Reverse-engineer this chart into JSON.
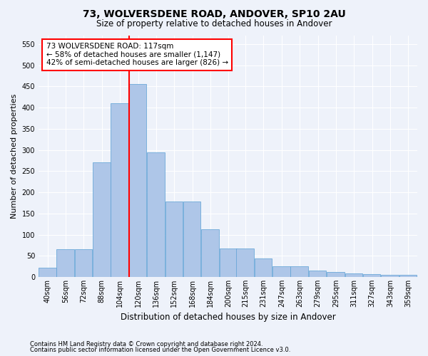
{
  "title": "73, WOLVERSDENE ROAD, ANDOVER, SP10 2AU",
  "subtitle": "Size of property relative to detached houses in Andover",
  "xlabel": "Distribution of detached houses by size in Andover",
  "ylabel": "Number of detached properties",
  "footnote1": "Contains HM Land Registry data © Crown copyright and database right 2024.",
  "footnote2": "Contains public sector information licensed under the Open Government Licence v3.0.",
  "bins": [
    40,
    56,
    72,
    88,
    104,
    120,
    136,
    152,
    168,
    184,
    200,
    215,
    231,
    247,
    263,
    279,
    295,
    311,
    327,
    343,
    359
  ],
  "bar_labels": [
    "40sqm",
    "56sqm",
    "72sqm",
    "88sqm",
    "104sqm",
    "120sqm",
    "136sqm",
    "152sqm",
    "168sqm",
    "184sqm",
    "200sqm",
    "215sqm",
    "231sqm",
    "247sqm",
    "263sqm",
    "279sqm",
    "295sqm",
    "311sqm",
    "327sqm",
    "343sqm",
    "359sqm"
  ],
  "heights": [
    22,
    65,
    65,
    270,
    410,
    455,
    295,
    178,
    178,
    113,
    67,
    67,
    43,
    25,
    25,
    15,
    12,
    8,
    6,
    5,
    5
  ],
  "bar_color": "#aec6e8",
  "bar_edge_color": "#5a9fd4",
  "vline_x": 120,
  "vline_color": "red",
  "annotation_text": "73 WOLVERSDENE ROAD: 117sqm\n← 58% of detached houses are smaller (1,147)\n42% of semi-detached houses are larger (826) →",
  "annotation_box_edge": "red",
  "ylim": [
    0,
    570
  ],
  "yticks": [
    0,
    50,
    100,
    150,
    200,
    250,
    300,
    350,
    400,
    450,
    500,
    550
  ],
  "bg_color": "#eef2fa",
  "plot_bg": "#eef2fa",
  "grid_color": "white",
  "title_fontsize": 10,
  "subtitle_fontsize": 8.5
}
